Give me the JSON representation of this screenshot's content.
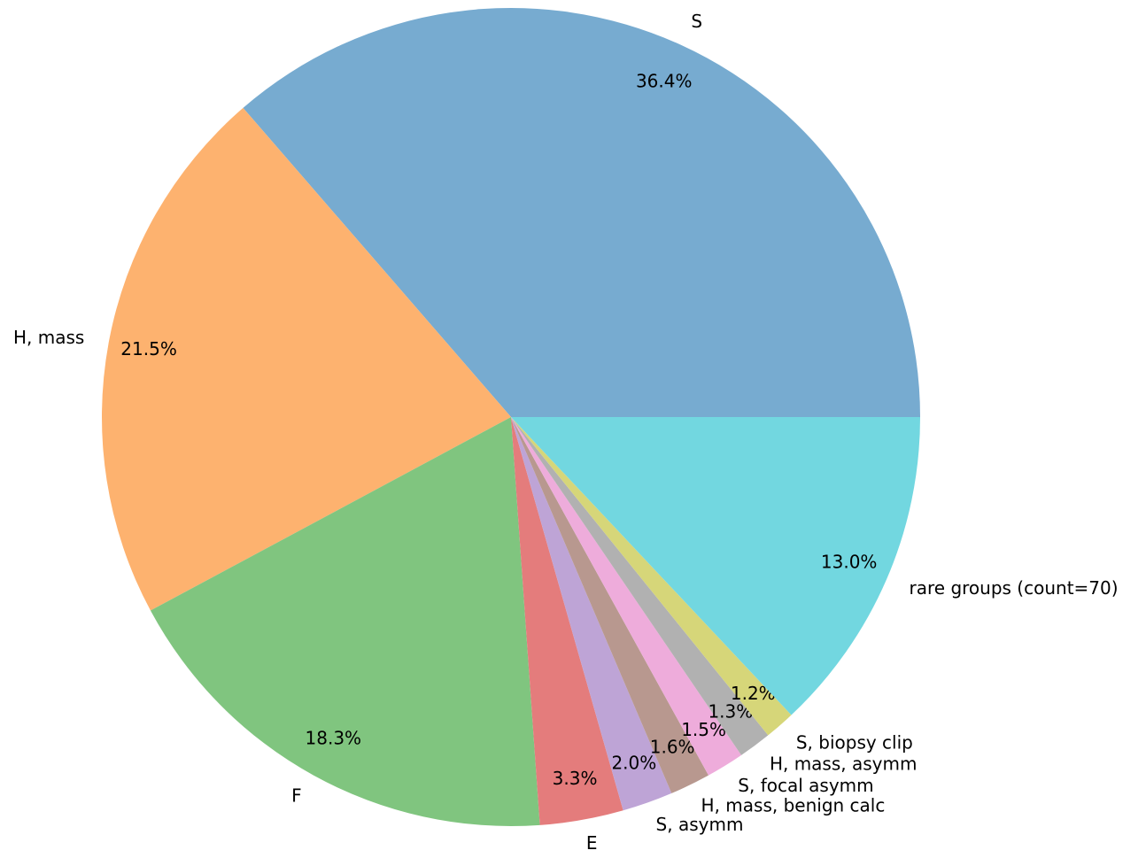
{
  "chart_data": {
    "type": "pie",
    "categories": [
      "S",
      "H, mass",
      "F",
      "E",
      "S, asymm",
      "H, mass, benign calc",
      "S, focal asymm",
      "H, mass, asymm",
      "S, biopsy clip",
      "rare groups (count=70)"
    ],
    "values": [
      36.4,
      21.5,
      18.3,
      3.3,
      2.0,
      1.6,
      1.5,
      1.3,
      1.2,
      13.0
    ],
    "value_labels": [
      "36.4%",
      "21.5%",
      "18.3%",
      "3.3%",
      "2.0%",
      "1.6%",
      "1.5%",
      "1.3%",
      "1.2%",
      "13.0%"
    ],
    "colors": [
      "#77abd0",
      "#fdb26f",
      "#80c57f",
      "#e47c7c",
      "#bea4d6",
      "#b8988f",
      "#eeacdb",
      "#b1b1b1",
      "#d6d679",
      "#72d7e0"
    ]
  }
}
